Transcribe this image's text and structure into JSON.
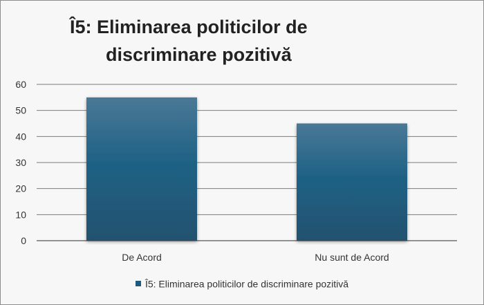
{
  "chart_data": {
    "type": "bar",
    "title_line1": "Î5: Eliminarea politicilor de",
    "title_line2": "discriminare pozitivă",
    "categories": [
      "De Acord",
      "Nu sunt de Acord"
    ],
    "series": [
      {
        "name": "Î5: Eliminarea politicilor de discriminare pozitivă",
        "values": [
          55,
          45
        ]
      }
    ],
    "ylim": [
      0,
      60
    ],
    "yticks": [
      0,
      10,
      20,
      30,
      40,
      50,
      60
    ],
    "grid": true,
    "legend": "bottom",
    "colors": {
      "bar_top": "#4a7896",
      "bar_mid": "#1f6285",
      "bar_bottom": "#21516f"
    }
  }
}
